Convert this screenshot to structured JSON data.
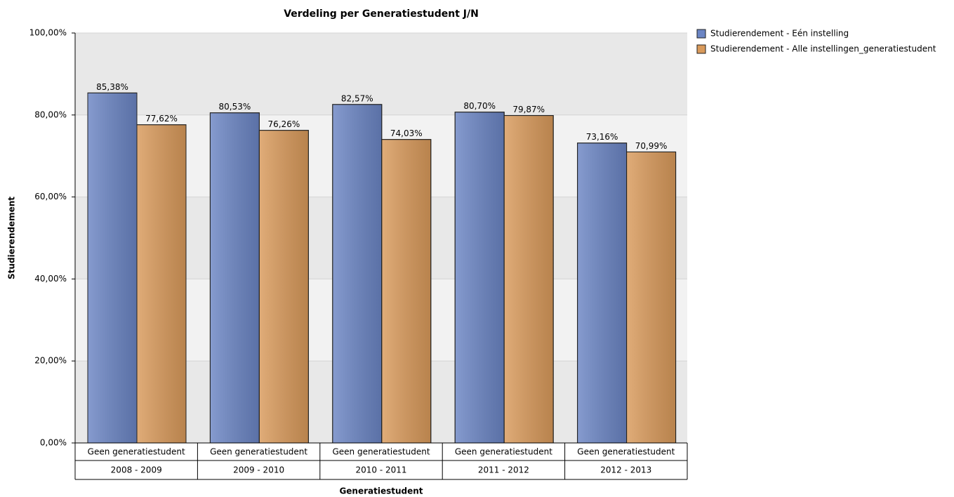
{
  "chart_data": {
    "type": "bar",
    "title": "Verdeling per Generatiestudent J/N",
    "x_label": "Generatiestudent",
    "y_label": "Studierendement",
    "categories": [
      "2008 - 2009",
      "2009 - 2010",
      "2010 - 2011",
      "2011 - 2012",
      "2012 - 2013"
    ],
    "subcategories": [
      "Geen generatiestudent",
      "Geen generatiestudent",
      "Geen generatiestudent",
      "Geen generatiestudent",
      "Geen generatiestudent"
    ],
    "series": [
      {
        "name": "Studierendement - Eén instelling",
        "color": "#6b85c4",
        "values": [
          85.38,
          80.53,
          82.57,
          80.7,
          73.16
        ],
        "value_labels": [
          "85,38%",
          "80,53%",
          "82,57%",
          "80,70%",
          "73,16%"
        ]
      },
      {
        "name": "Studierendement - Alle instellingen_generatiestudent",
        "color": "#d99a5b",
        "values": [
          77.62,
          76.26,
          74.03,
          79.87,
          70.99
        ],
        "value_labels": [
          "77,62%",
          "76,26%",
          "74,03%",
          "79,87%",
          "70,99%"
        ]
      }
    ],
    "ylim": [
      0,
      100
    ],
    "yticks": [
      {
        "value": 0,
        "label": "0,00%"
      },
      {
        "value": 20,
        "label": "20,00%"
      },
      {
        "value": 40,
        "label": "40,00%"
      },
      {
        "value": 60,
        "label": "60,00%"
      },
      {
        "value": 80,
        "label": "80,00%"
      },
      {
        "value": 100,
        "label": "100,00%"
      }
    ],
    "grid": true,
    "legend": "right"
  }
}
